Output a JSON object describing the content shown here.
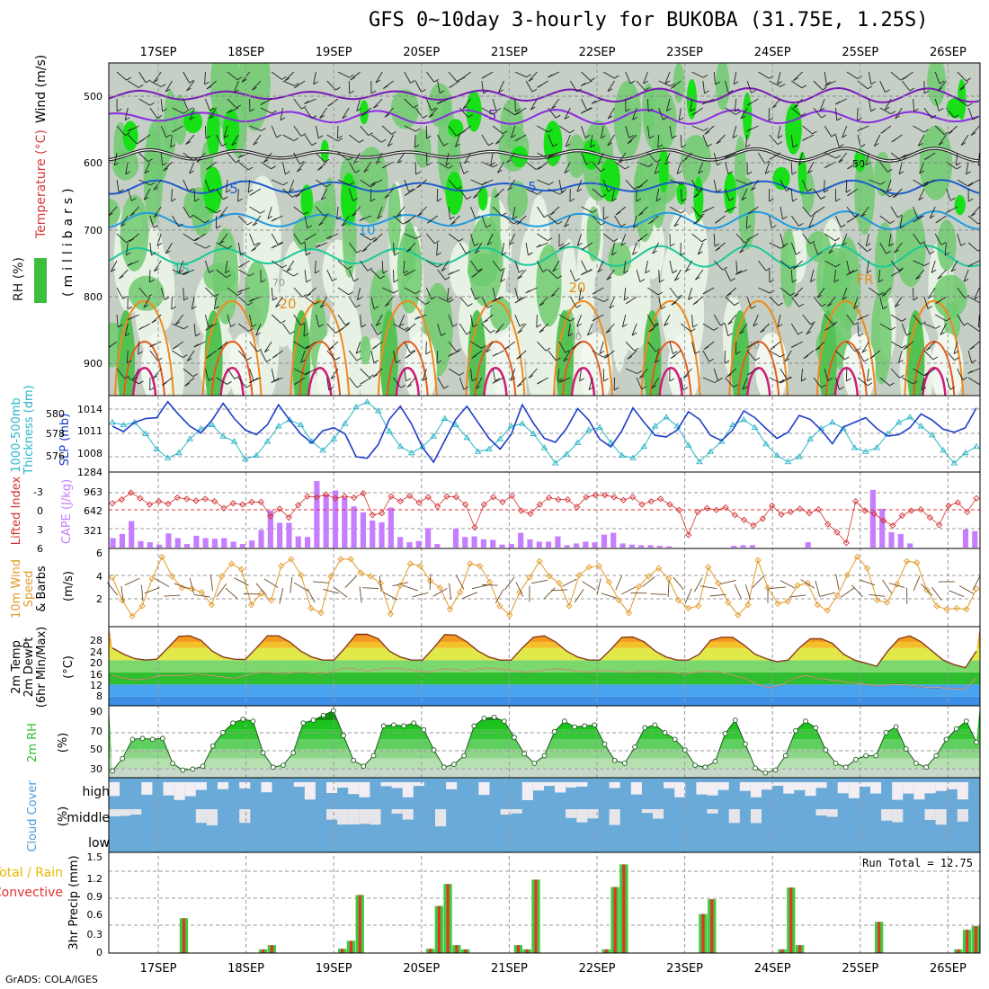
{
  "title": "GFS 0~10day 3-hourly for BUKOBA (31.75E, 1.25S)",
  "credit": "GrADS: COLA/IGES",
  "dates": [
    "17SEP",
    "18SEP",
    "19SEP",
    "20SEP",
    "21SEP",
    "22SEP",
    "23SEP",
    "24SEP",
    "25SEP",
    "26SEP"
  ],
  "panels": {
    "upper": {
      "ylabel_rh": "RH (%)",
      "ylabel_temp": "Temperature (°C)",
      "ylabel_wind": "Wind (m/s)",
      "ylabel_pressure": "(millibars)",
      "y_ticks": [
        "500",
        "600",
        "700",
        "800",
        "900"
      ],
      "contour_labels": [
        "-5",
        "5",
        "5",
        "10",
        "15",
        "20",
        "20",
        "FR",
        "50",
        "50",
        "70",
        "70"
      ]
    },
    "slp": {
      "ylabel_thick": "Thickness (dm)",
      "ylabel_thick2": "1000-500mb",
      "ylabel_slp": "SLP (mb)",
      "thick_ticks": [
        "580",
        "578",
        "576"
      ],
      "slp_ticks": [
        "1014",
        "1011",
        "1008"
      ]
    },
    "cape": {
      "ylabel_li": "Lifted Index",
      "ylabel_cape": "CAPE (J/kg)",
      "li_ticks": [
        "-3",
        "0",
        "3",
        "6"
      ],
      "cape_ticks": [
        "1284",
        "963",
        "642",
        "321"
      ]
    },
    "wind10": {
      "ylabel1": "10m Wind",
      "ylabel2": "Speed",
      "ylabel3": "& Barbs",
      "unit": "(m/s)",
      "ticks": [
        "6",
        "4",
        "2"
      ]
    },
    "temp2m": {
      "ylabel1": "2m Temp",
      "ylabel2": "2m DewPt",
      "ylabel3": "(6hr Min/Max)",
      "unit": "(°C)",
      "ticks": [
        "28",
        "24",
        "20",
        "16",
        "12",
        "8"
      ]
    },
    "rh2m": {
      "ylabel": "2m RH",
      "unit": "(%)",
      "ticks": [
        "90",
        "70",
        "50",
        "30"
      ]
    },
    "cloud": {
      "ylabel": "Cloud Cover",
      "unit": "(%)",
      "levels": [
        "high",
        "middle",
        "low"
      ]
    },
    "precip": {
      "ylabel1": "Total / Rain",
      "ylabel2": "Convective",
      "ylabel3": "3hr Precip (mm)",
      "run_total": "Run Total = 12.75",
      "ticks": [
        "1.5",
        "1.2",
        "0.9",
        "0.6",
        "0.3",
        "0"
      ]
    }
  },
  "chart_data": [
    {
      "type": "line",
      "name": "slp",
      "series": [
        {
          "name": "SLP (mb)",
          "color": "#1d3ec8",
          "values": [
            1012.0,
            1011.3,
            1012.5,
            1013.0,
            1013.1,
            1015.2,
            1013.5,
            1012.0,
            1011.1,
            1012.8,
            1015.0,
            1013.0,
            1011.5,
            1010.9,
            1012.2,
            1014.8,
            1012.8,
            1011.0,
            1009.8,
            1011.4,
            1011.8,
            1011.0,
            1008.0,
            1007.8,
            1009.6,
            1012.9,
            1014.6,
            1012.3,
            1009.2,
            1007.3,
            1010.1,
            1012.9,
            1014.6,
            1012.5,
            1010.4,
            1009.0,
            1010.9,
            1014.8,
            1012.4,
            1010.4,
            1009.9,
            1011.7,
            1014.3,
            1012.8,
            1010.3,
            1009.3,
            1011.4,
            1014.4,
            1012.5,
            1010.8,
            1010.6,
            1011.5,
            1013.9,
            1012.9,
            1010.8,
            1010.1,
            1011.5,
            1014.0,
            1013.1,
            1011.7,
            1010.4,
            1011.2,
            1013.4,
            1012.9,
            1011.5,
            1009.7,
            1011.9,
            1012.5,
            1013.1,
            1011.7,
            1010.7,
            1010.9,
            1011.8,
            1013.6,
            1012.8,
            1011.6,
            1011.2,
            1011.8,
            1014.4
          ]
        },
        {
          "name": "Thickness (dm)",
          "color": "#2ab5c8",
          "values": [
            578.9,
            578.7,
            578.9,
            578.0,
            576.8,
            576.1,
            576.5,
            577.6,
            578.4,
            578.7,
            577.8,
            577.4,
            576.0,
            576.3,
            577.4,
            578.6,
            579.1,
            578.7,
            577.4,
            576.7,
            577.6,
            578.8,
            580.1,
            580.5,
            579.8,
            578.2,
            577.0,
            576.5,
            577.0,
            577.8,
            579.2,
            578.7,
            577.7,
            576.6,
            576.8,
            577.6,
            578.6,
            578.8,
            578.0,
            576.9,
            575.7,
            576.4,
            577.3,
            578.3,
            578.5,
            577.3,
            576.3,
            576.1,
            577.0,
            578.6,
            579.3,
            578.6,
            577.1,
            575.8,
            576.6,
            577.4,
            578.7,
            579.1,
            578.5,
            577.2,
            576.3,
            575.8,
            576.2,
            577.6,
            578.4,
            578.9,
            578.4,
            576.9,
            576.6,
            576.9,
            578.0,
            578.9,
            579.3,
            578.6,
            577.9,
            576.7,
            575.7,
            576.5,
            577.0
          ]
        }
      ],
      "ylim_slp": [
        1006,
        1016
      ],
      "ylim_thick": [
        575,
        581
      ]
    },
    {
      "type": "bar",
      "name": "cape_li",
      "cape_values": [
        160,
        230,
        450,
        110,
        90,
        50,
        240,
        160,
        60,
        200,
        160,
        150,
        160,
        100,
        60,
        120,
        300,
        630,
        420,
        420,
        190,
        180,
        1130,
        900,
        970,
        850,
        700,
        600,
        460,
        430,
        680,
        180,
        90,
        110,
        330,
        60,
        0,
        320,
        180,
        190,
        140,
        130,
        50,
        60,
        250,
        140,
        100,
        100,
        190,
        40,
        70,
        100,
        90,
        220,
        250,
        70,
        50,
        40,
        40,
        30,
        20,
        0,
        0,
        0,
        0,
        0,
        0,
        30,
        40,
        40,
        0,
        0,
        0,
        0,
        0,
        90,
        0,
        0,
        0,
        0,
        0,
        0,
        980,
        660,
        260,
        230,
        70,
        0,
        0,
        0,
        0,
        0,
        310,
        280
      ],
      "li_values": [
        -1.3,
        -1.9,
        -3.0,
        -2.1,
        -1.1,
        -1.6,
        -1.2,
        -2.2,
        -2.0,
        -1.7,
        -2.0,
        -1.6,
        -0.5,
        -1.3,
        -1.1,
        -1.5,
        -1.5,
        0.8,
        -0.4,
        1.0,
        -1.0,
        -2.4,
        -2.3,
        -2.7,
        -2.1,
        -2.4,
        -2.2,
        -2.9,
        0.6,
        0.3,
        -2.4,
        -1.6,
        -2.5,
        -1.4,
        -2.3,
        -0.8,
        -2.4,
        -2.3,
        -1.1,
        2.6,
        -1.1,
        -2.3,
        -1.5,
        -2.5,
        -0.1,
        0.4,
        -1.1,
        -2.2,
        -1.9,
        -1.9,
        -0.7,
        -2.3,
        -2.6,
        -2.6,
        -2.3,
        -1.8,
        -2.3,
        -1.1,
        -1.6,
        -2.0,
        -1.1,
        -0.2,
        3.8,
        0.1,
        -0.5,
        -0.2,
        -0.6,
        0.6,
        1.4,
        2.3,
        1.2,
        -0.9,
        0.5,
        0.1,
        -0.4,
        0.3,
        -0.3,
        2.1,
        3.4,
        5.1,
        -1.6,
        -0.1,
        0.4,
        1.5,
        2.3,
        0.7,
        -0.1,
        -0.3,
        1.0,
        2.2,
        -0.9,
        -1.4,
        0.1,
        -2.1
      ],
      "ylim_cape": [
        0,
        1284
      ],
      "ylim_li": [
        6,
        -3
      ]
    },
    {
      "type": "line",
      "name": "wind10",
      "values": [
        4.0,
        2.0,
        0.6,
        1.5,
        3.9,
        5.8,
        4.1,
        3.1,
        3.0,
        2.7,
        1.6,
        4.1,
        5.2,
        4.7,
        1.6,
        2.6,
        2.0,
        5.0,
        5.6,
        4.2,
        1.3,
        0.9,
        4.1,
        5.6,
        5.6,
        4.4,
        4.1,
        3.5,
        0.8,
        3.3,
        5.2,
        5.0,
        3.7,
        3.1,
        1.2,
        2.7,
        5.2,
        5.0,
        3.6,
        1.5,
        0.7,
        2.7,
        4.0,
        5.4,
        4.1,
        3.5,
        1.5,
        4.2,
        4.9,
        5.0,
        3.6,
        2.0,
        0.9,
        3.2,
        4.1,
        4.8,
        3.9,
        2.0,
        1.3,
        1.5,
        4.9,
        3.5,
        1.8,
        0.7,
        1.6,
        5.5,
        3.1,
        1.7,
        1.9,
        3.3,
        3.5,
        1.6,
        1.1,
        2.4,
        4.2,
        5.8,
        4.8,
        2.0,
        1.8,
        3.4,
        5.4,
        5.3,
        2.9,
        1.5,
        1.2,
        1.3,
        1.2,
        3.0
      ],
      "ylim": [
        0,
        6.3
      ]
    },
    {
      "type": "area",
      "name": "temp2m",
      "temp": [
        24,
        22,
        20.5,
        20,
        20.3,
        24,
        27.8,
        28,
        26.5,
        23,
        21,
        20.3,
        20.2,
        24,
        28,
        28,
        26,
        23,
        21,
        20,
        20,
        24,
        28.5,
        28.5,
        27,
        23,
        21,
        20,
        20,
        24,
        28.4,
        28.2,
        26,
        23,
        21,
        20,
        20,
        24,
        27.5,
        28,
        26,
        23,
        21,
        20,
        20,
        23.5,
        27.5,
        27.6,
        26,
        23,
        21,
        20,
        20,
        22,
        26.5,
        27.5,
        27.5,
        25,
        22,
        20.5,
        19.5,
        20,
        24,
        27,
        27,
        25.5,
        22,
        20,
        19,
        18,
        23,
        27,
        28,
        26,
        23,
        20,
        18.5,
        17.5,
        23
      ],
      "dewpt": [
        15,
        14,
        13.5,
        14,
        15,
        15,
        15,
        15.5,
        15,
        14.5,
        14,
        15,
        16,
        16,
        15.5,
        16,
        16,
        15.5,
        16,
        17.5,
        17,
        16.5,
        17,
        17.5,
        17,
        16.5,
        16,
        17,
        17,
        16.5,
        17,
        17.5,
        17,
        16.5,
        16,
        16.5,
        17,
        17,
        16.5,
        16,
        16.5,
        16.5,
        16,
        16,
        16.5,
        16,
        16,
        15.5,
        16,
        16.5,
        16,
        15,
        14,
        12,
        11,
        12,
        14,
        15,
        14,
        13.5,
        13,
        12.5,
        12,
        11.5,
        12,
        12,
        11.5,
        11,
        11,
        10.5,
        10.5,
        14
      ],
      "ylim": [
        5,
        31
      ]
    },
    {
      "type": "area",
      "name": "rh2m",
      "values": [
        32,
        45,
        65,
        66,
        65,
        66,
        40,
        33,
        34,
        37,
        58,
        72,
        82,
        86,
        84,
        51,
        36,
        38,
        51,
        82,
        85,
        90,
        95,
        69,
        43,
        37,
        48,
        79,
        80,
        79,
        82,
        75,
        54,
        36,
        39,
        48,
        79,
        87,
        88,
        84,
        67,
        50,
        40,
        48,
        73,
        84,
        78,
        79,
        80,
        60,
        43,
        40,
        57,
        77,
        80,
        72,
        65,
        54,
        38,
        36,
        42,
        71,
        85,
        60,
        35,
        30,
        33,
        48,
        74,
        84,
        77,
        54,
        40,
        36,
        44,
        48,
        48,
        72,
        78,
        55,
        40,
        36,
        48,
        65,
        76,
        84,
        62
      ],
      "ylim": [
        25,
        100
      ]
    },
    {
      "type": "bar",
      "name": "precip",
      "values": [
        0,
        0,
        0,
        0,
        0,
        0,
        0,
        0,
        0.57,
        0,
        0,
        0,
        0,
        0,
        0,
        0,
        0,
        0.06,
        0.13,
        0,
        0,
        0,
        0,
        0,
        0,
        0,
        0.07,
        0.2,
        0.95,
        0,
        0,
        0,
        0,
        0,
        0,
        0,
        0.07,
        0.77,
        1.13,
        0.13,
        0.06,
        0,
        0,
        0,
        0,
        0,
        0.13,
        0.06,
        1.2,
        0,
        0,
        0,
        0,
        0,
        0,
        0,
        0.06,
        1.08,
        1.45,
        0,
        0,
        0,
        0,
        0,
        0,
        0,
        0,
        0.64,
        0.88,
        0,
        0,
        0,
        0,
        0,
        0,
        0,
        0.06,
        1.07,
        0.13,
        0,
        0,
        0,
        0,
        0,
        0,
        0,
        0,
        0.51,
        0,
        0,
        0,
        0,
        0,
        0,
        0,
        0,
        0.06,
        0.38,
        0.44
      ],
      "ylim": [
        0,
        1.5
      ]
    }
  ]
}
